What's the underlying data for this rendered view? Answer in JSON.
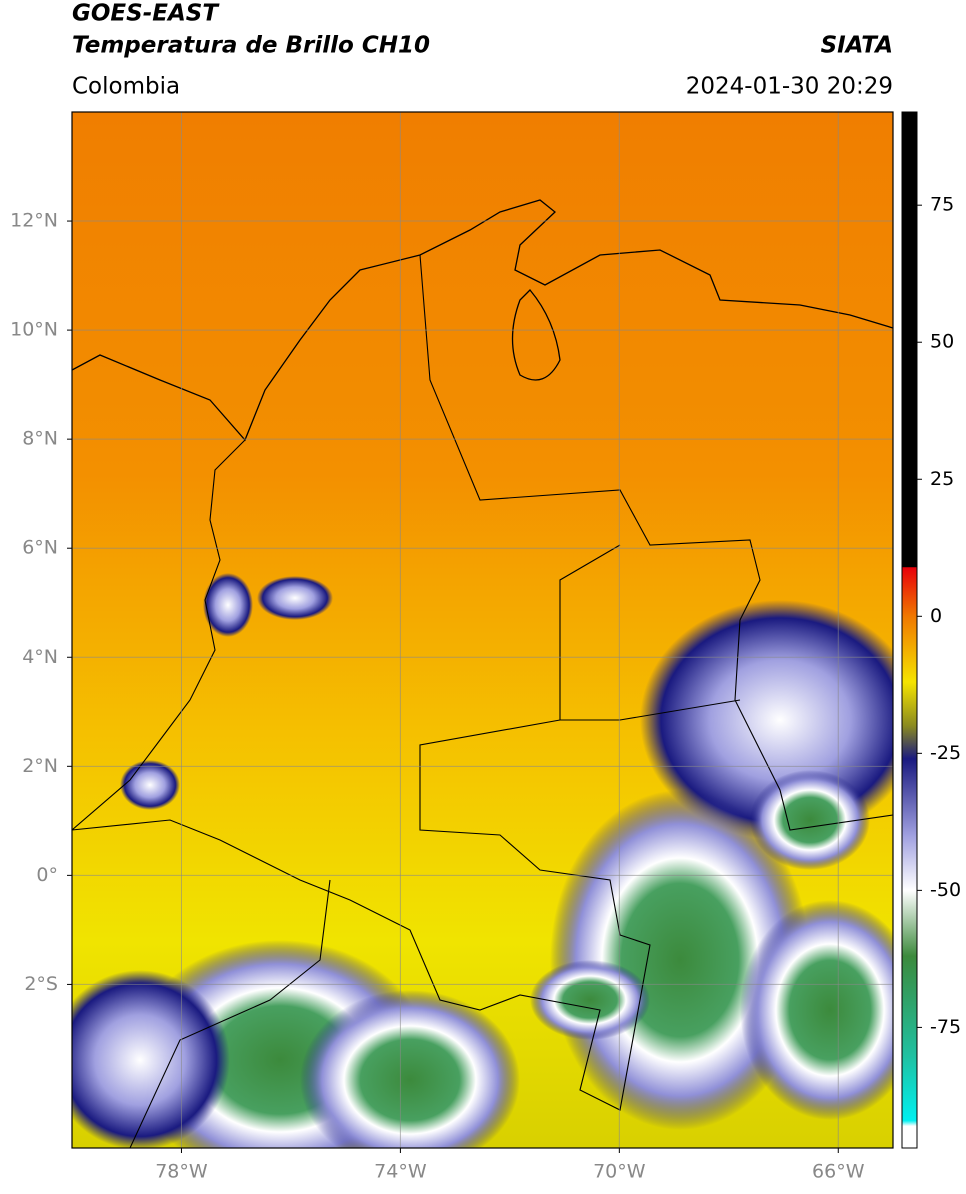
{
  "header": {
    "title": "GOES-EAST",
    "subtitle": "Temperatura de Brillo CH10",
    "source": "SIATA",
    "region": "Colombia",
    "datetime": "2024-01-30 20:29"
  },
  "map": {
    "lonlim": [
      -80,
      -65
    ],
    "latlim": [
      -5,
      14
    ],
    "grid": true,
    "lonticks": [
      {
        "value": -78,
        "label": "78°W"
      },
      {
        "value": -74,
        "label": "74°W"
      },
      {
        "value": -70,
        "label": "70°W"
      },
      {
        "value": -66,
        "label": "66°W"
      }
    ],
    "latticks": [
      {
        "value": 12,
        "label": "12°N"
      },
      {
        "value": 10,
        "label": "10°N"
      },
      {
        "value": 8,
        "label": "8°N"
      },
      {
        "value": 6,
        "label": "6°N"
      },
      {
        "value": 4,
        "label": "4°N"
      },
      {
        "value": 2,
        "label": "2°N"
      },
      {
        "value": 0,
        "label": "0°"
      },
      {
        "value": -2,
        "label": "2°S"
      }
    ]
  },
  "colorbar": {
    "lim": [
      -97,
      92
    ],
    "ticks": [
      75,
      50,
      25,
      0,
      -25,
      -50,
      -75
    ],
    "stops": [
      {
        "value": 92,
        "color": "#000000"
      },
      {
        "value": 9,
        "color": "#000000"
      },
      {
        "value": 8.9,
        "color": "#e8000a"
      },
      {
        "value": 0,
        "color": "#f07800"
      },
      {
        "value": -12,
        "color": "#f5e400"
      },
      {
        "value": -20,
        "color": "#8a8a20"
      },
      {
        "value": -26,
        "color": "#1a1a80"
      },
      {
        "value": -40,
        "color": "#a0a0e0"
      },
      {
        "value": -50,
        "color": "#ffffff"
      },
      {
        "value": -62,
        "color": "#3c8a3c"
      },
      {
        "value": -80,
        "color": "#20c0a0"
      },
      {
        "value": -92,
        "color": "#00f0f0"
      },
      {
        "value": -93,
        "color": "#ffffff"
      },
      {
        "value": -97,
        "color": "#ffffff"
      }
    ]
  }
}
